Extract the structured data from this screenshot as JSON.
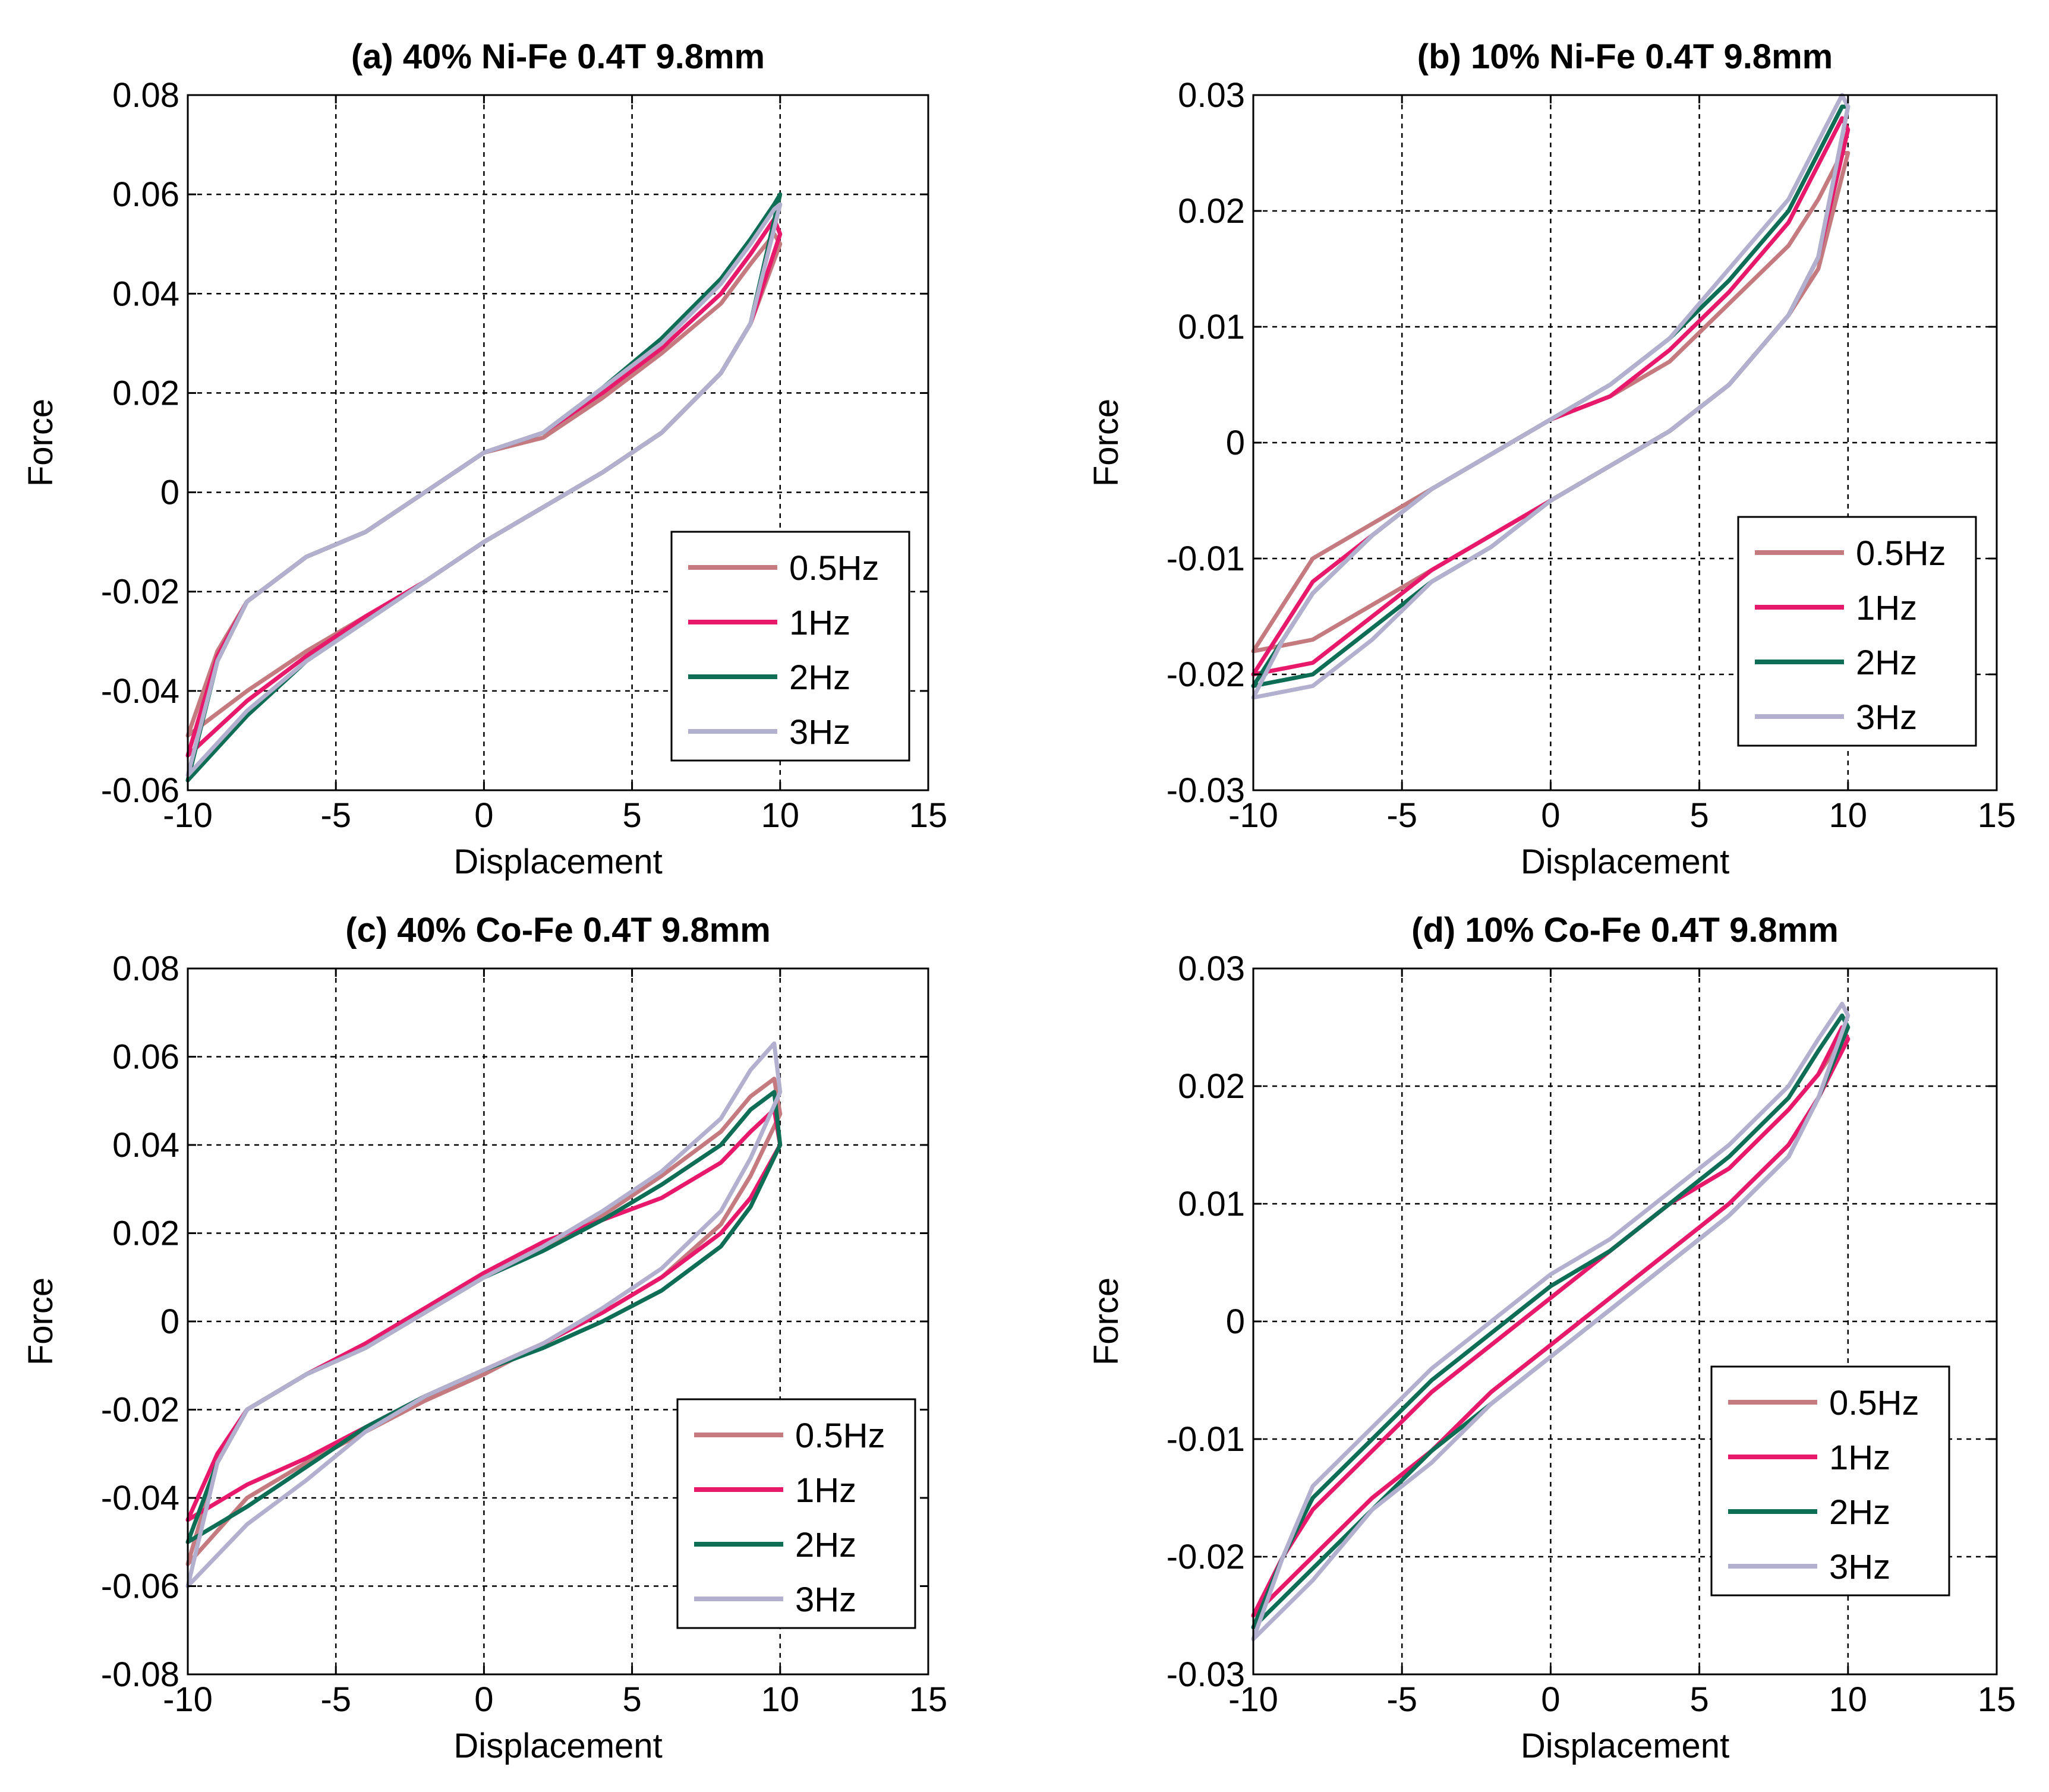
{
  "colors": {
    "0.5Hz": "#c47a7e",
    "1Hz": "#e8196b",
    "2Hz": "#0e6e55",
    "3Hz": "#b2b0ce",
    "grid": "#000000",
    "background": "#ffffff"
  },
  "chart_data": [
    {
      "id": "a",
      "type": "line",
      "title": "(a) 40% Ni-Fe  0.4T 9.8mm",
      "xlabel": "Displacement",
      "ylabel": "Force",
      "xlim": [
        -10,
        15
      ],
      "ylim": [
        -0.06,
        0.08
      ],
      "xticks": [
        -10,
        -5,
        0,
        5,
        10,
        15
      ],
      "yticks": [
        -0.06,
        -0.04,
        -0.02,
        0,
        0.02,
        0.04,
        0.06,
        0.08
      ],
      "xtick_labels": [
        "-10",
        "-5",
        "0",
        "5",
        "10",
        "15"
      ],
      "ytick_labels": [
        "-0.06",
        "-0.04",
        "-0.02",
        "0",
        "0.02",
        "0.04",
        "0.06",
        "0.08"
      ],
      "grid": true,
      "legend": {
        "position": "lower-right",
        "entries": [
          "0.5Hz",
          "1Hz",
          "2Hz",
          "3Hz"
        ]
      },
      "series": [
        {
          "name": "0.5Hz",
          "x": [
            -10,
            -8,
            -6,
            -4,
            -2,
            0,
            2,
            4,
            6,
            8,
            9,
            10,
            9.8,
            9,
            8,
            6,
            4,
            2,
            0,
            -2,
            -4,
            -6,
            -8,
            -9,
            -10
          ],
          "y": [
            -0.049,
            -0.04,
            -0.032,
            -0.025,
            -0.018,
            -0.01,
            -0.003,
            0.004,
            0.012,
            0.024,
            0.034,
            0.05,
            0.052,
            0.046,
            0.038,
            0.028,
            0.019,
            0.011,
            0.008,
            0.0,
            -0.008,
            -0.013,
            -0.022,
            -0.032,
            -0.049
          ]
        },
        {
          "name": "1Hz",
          "x": [
            -10,
            -8,
            -6,
            -4,
            -2,
            0,
            2,
            4,
            6,
            8,
            9,
            10,
            9.8,
            9,
            8,
            6,
            4,
            2,
            0,
            -2,
            -4,
            -6,
            -8,
            -9,
            -10
          ],
          "y": [
            -0.053,
            -0.042,
            -0.033,
            -0.025,
            -0.018,
            -0.01,
            -0.003,
            0.004,
            0.012,
            0.024,
            0.034,
            0.052,
            0.055,
            0.048,
            0.04,
            0.029,
            0.02,
            0.012,
            0.008,
            0.0,
            -0.008,
            -0.013,
            -0.022,
            -0.033,
            -0.053
          ]
        },
        {
          "name": "2Hz",
          "x": [
            -10,
            -8,
            -6,
            -4,
            -2,
            0,
            2,
            4,
            6,
            8,
            9,
            10,
            9.8,
            9,
            8,
            6,
            4,
            2,
            0,
            -2,
            -4,
            -6,
            -8,
            -9,
            -10
          ],
          "y": [
            -0.058,
            -0.045,
            -0.034,
            -0.026,
            -0.018,
            -0.01,
            -0.003,
            0.004,
            0.012,
            0.024,
            0.034,
            0.06,
            0.058,
            0.051,
            0.043,
            0.031,
            0.021,
            0.012,
            0.008,
            0.0,
            -0.008,
            -0.013,
            -0.022,
            -0.034,
            -0.058
          ]
        },
        {
          "name": "3Hz",
          "x": [
            -10,
            -8,
            -6,
            -4,
            -2,
            0,
            2,
            4,
            6,
            8,
            9,
            10,
            9.8,
            9,
            8,
            6,
            4,
            2,
            0,
            -2,
            -4,
            -6,
            -8,
            -9,
            -10
          ],
          "y": [
            -0.057,
            -0.044,
            -0.034,
            -0.026,
            -0.018,
            -0.01,
            -0.003,
            0.004,
            0.012,
            0.024,
            0.034,
            0.058,
            0.057,
            0.05,
            0.042,
            0.03,
            0.021,
            0.012,
            0.008,
            0.0,
            -0.008,
            -0.013,
            -0.022,
            -0.034,
            -0.057
          ]
        }
      ]
    },
    {
      "id": "b",
      "type": "line",
      "title": "(b) 10% Ni-Fe  0.4T 9.8mm",
      "xlabel": "Displacement",
      "ylabel": "Force",
      "xlim": [
        -10,
        15
      ],
      "ylim": [
        -0.03,
        0.03
      ],
      "xticks": [
        -10,
        -5,
        0,
        5,
        10,
        15
      ],
      "yticks": [
        -0.03,
        -0.02,
        -0.01,
        0,
        0.01,
        0.02,
        0.03
      ],
      "xtick_labels": [
        "-10",
        "-5",
        "0",
        "5",
        "10",
        "15"
      ],
      "ytick_labels": [
        "-0.03",
        "-0.02",
        "-0.01",
        "0",
        "0.01",
        "0.02",
        "0.03"
      ],
      "grid": true,
      "legend": {
        "position": "lower-right",
        "entries": [
          "0.5Hz",
          "1Hz",
          "2Hz",
          "3Hz"
        ]
      },
      "series": [
        {
          "name": "0.5Hz",
          "x": [
            -10,
            -8,
            -6,
            -4,
            -2,
            0,
            2,
            4,
            6,
            8,
            9,
            10,
            9.8,
            9,
            8,
            6,
            4,
            2,
            0,
            -2,
            -4,
            -6,
            -8,
            -9,
            -10
          ],
          "y": [
            -0.018,
            -0.017,
            -0.014,
            -0.011,
            -0.008,
            -0.005,
            -0.002,
            0.001,
            0.005,
            0.011,
            0.015,
            0.025,
            0.025,
            0.021,
            0.017,
            0.012,
            0.007,
            0.004,
            0.002,
            -0.001,
            -0.004,
            -0.007,
            -0.01,
            -0.014,
            -0.018
          ]
        },
        {
          "name": "1Hz",
          "x": [
            -10,
            -8,
            -6,
            -4,
            -2,
            0,
            2,
            4,
            6,
            8,
            9,
            10,
            9.8,
            9,
            8,
            6,
            4,
            2,
            0,
            -2,
            -4,
            -6,
            -8,
            -9,
            -10
          ],
          "y": [
            -0.02,
            -0.019,
            -0.015,
            -0.011,
            -0.008,
            -0.005,
            -0.002,
            0.001,
            0.005,
            0.011,
            0.016,
            0.027,
            0.028,
            0.024,
            0.019,
            0.013,
            0.008,
            0.004,
            0.002,
            -0.001,
            -0.004,
            -0.008,
            -0.012,
            -0.016,
            -0.02
          ]
        },
        {
          "name": "2Hz",
          "x": [
            -10,
            -8,
            -6,
            -4,
            -2,
            0,
            2,
            4,
            6,
            8,
            9,
            10,
            9.8,
            9,
            8,
            6,
            4,
            2,
            0,
            -2,
            -4,
            -6,
            -8,
            -9,
            -10
          ],
          "y": [
            -0.021,
            -0.02,
            -0.016,
            -0.012,
            -0.009,
            -0.005,
            -0.002,
            0.001,
            0.005,
            0.011,
            0.016,
            0.029,
            0.029,
            0.025,
            0.02,
            0.014,
            0.009,
            0.005,
            0.002,
            -0.001,
            -0.004,
            -0.008,
            -0.013,
            -0.017,
            -0.021
          ]
        },
        {
          "name": "3Hz",
          "x": [
            -10,
            -8,
            -6,
            -4,
            -2,
            0,
            2,
            4,
            6,
            8,
            9,
            10,
            9.8,
            9,
            8,
            6,
            4,
            2,
            0,
            -2,
            -4,
            -6,
            -8,
            -9,
            -10
          ],
          "y": [
            -0.022,
            -0.021,
            -0.017,
            -0.012,
            -0.009,
            -0.005,
            -0.002,
            0.001,
            0.005,
            0.011,
            0.016,
            0.029,
            0.03,
            0.026,
            0.021,
            0.015,
            0.009,
            0.005,
            0.002,
            -0.001,
            -0.004,
            -0.008,
            -0.013,
            -0.017,
            -0.022
          ]
        }
      ]
    },
    {
      "id": "c",
      "type": "line",
      "title": "(c) 40% Co-Fe  0.4T 9.8mm",
      "xlabel": "Displacement",
      "ylabel": "Force",
      "xlim": [
        -10,
        15
      ],
      "ylim": [
        -0.08,
        0.08
      ],
      "xticks": [
        -10,
        -5,
        0,
        5,
        10,
        15
      ],
      "yticks": [
        -0.08,
        -0.06,
        -0.04,
        -0.02,
        0,
        0.02,
        0.04,
        0.06,
        0.08
      ],
      "xtick_labels": [
        "-10",
        "-5",
        "0",
        "5",
        "10",
        "15"
      ],
      "ytick_labels": [
        "-0.08",
        "-0.06",
        "-0.04",
        "-0.02",
        "0",
        "0.02",
        "0.04",
        "0.06",
        "0.08"
      ],
      "grid": true,
      "legend": {
        "position": "lower-right",
        "entries": [
          "0.5Hz",
          "1Hz",
          "2Hz",
          "3Hz"
        ]
      },
      "series": [
        {
          "name": "0.5Hz",
          "x": [
            -10,
            -8,
            -6,
            -4,
            -2,
            0,
            2,
            4,
            6,
            8,
            9,
            10,
            9.8,
            9,
            8,
            6,
            4,
            2,
            0,
            -2,
            -4,
            -6,
            -8,
            -9,
            -10
          ],
          "y": [
            -0.055,
            -0.04,
            -0.032,
            -0.025,
            -0.018,
            -0.012,
            -0.005,
            0.002,
            0.01,
            0.022,
            0.033,
            0.047,
            0.055,
            0.051,
            0.043,
            0.033,
            0.024,
            0.017,
            0.01,
            0.002,
            -0.006,
            -0.012,
            -0.02,
            -0.032,
            -0.055
          ]
        },
        {
          "name": "1Hz",
          "x": [
            -10,
            -8,
            -6,
            -4,
            -2,
            0,
            2,
            4,
            6,
            8,
            9,
            10,
            9.8,
            9,
            8,
            6,
            4,
            2,
            0,
            -2,
            -4,
            -6,
            -8,
            -9,
            -10
          ],
          "y": [
            -0.045,
            -0.037,
            -0.031,
            -0.024,
            -0.017,
            -0.011,
            -0.005,
            0.002,
            0.01,
            0.02,
            0.028,
            0.04,
            0.048,
            0.043,
            0.036,
            0.028,
            0.023,
            0.018,
            0.011,
            0.003,
            -0.005,
            -0.012,
            -0.02,
            -0.03,
            -0.045
          ]
        },
        {
          "name": "2Hz",
          "x": [
            -10,
            -8,
            -6,
            -4,
            -2,
            0,
            2,
            4,
            6,
            8,
            9,
            10,
            9.8,
            9,
            8,
            6,
            4,
            2,
            0,
            -2,
            -4,
            -6,
            -8,
            -9,
            -10
          ],
          "y": [
            -0.05,
            -0.042,
            -0.033,
            -0.024,
            -0.017,
            -0.011,
            -0.006,
            0.0,
            0.007,
            0.017,
            0.026,
            0.04,
            0.052,
            0.048,
            0.04,
            0.031,
            0.023,
            0.016,
            0.01,
            0.002,
            -0.006,
            -0.012,
            -0.02,
            -0.032,
            -0.05
          ]
        },
        {
          "name": "3Hz",
          "x": [
            -10,
            -8,
            -6,
            -4,
            -2,
            0,
            2,
            4,
            6,
            8,
            9,
            10,
            9.8,
            9,
            8,
            6,
            4,
            2,
            0,
            -2,
            -4,
            -6,
            -8,
            -9,
            -10
          ],
          "y": [
            -0.06,
            -0.046,
            -0.036,
            -0.025,
            -0.017,
            -0.011,
            -0.005,
            0.003,
            0.012,
            0.025,
            0.037,
            0.052,
            0.063,
            0.057,
            0.046,
            0.034,
            0.025,
            0.017,
            0.01,
            0.002,
            -0.006,
            -0.012,
            -0.02,
            -0.032,
            -0.06
          ]
        }
      ]
    },
    {
      "id": "d",
      "type": "line",
      "title": "(d) 10% Co-Fe  0.4T 9.8mm",
      "xlabel": "Displacement",
      "ylabel": "Force",
      "xlim": [
        -10,
        15
      ],
      "ylim": [
        -0.03,
        0.03
      ],
      "xticks": [
        -10,
        -5,
        0,
        5,
        10,
        15
      ],
      "yticks": [
        -0.03,
        -0.02,
        -0.01,
        0,
        0.01,
        0.02,
        0.03
      ],
      "xtick_labels": [
        "-10",
        "-5",
        "0",
        "5",
        "10",
        "15"
      ],
      "ytick_labels": [
        "-0.03",
        "-0.02",
        "-0.01",
        "0",
        "0.01",
        "0.02",
        "0.03"
      ],
      "grid": true,
      "legend": {
        "position": "lower-right",
        "entries": [
          "0.5Hz",
          "1Hz",
          "2Hz",
          "3Hz"
        ]
      },
      "series": [
        {
          "name": "0.5Hz",
          "x": [
            -10,
            -8,
            -6,
            -4,
            -2,
            0,
            2,
            4,
            6,
            8,
            9,
            10,
            9.8,
            9,
            8,
            6,
            4,
            2,
            0,
            -2,
            -4,
            -6,
            -8,
            -9,
            -10
          ],
          "y": [
            -0.025,
            -0.02,
            -0.015,
            -0.011,
            -0.006,
            -0.002,
            0.002,
            0.006,
            0.01,
            0.015,
            0.019,
            0.024,
            0.024,
            0.021,
            0.018,
            0.013,
            0.01,
            0.006,
            0.002,
            -0.002,
            -0.006,
            -0.011,
            -0.016,
            -0.02,
            -0.025
          ]
        },
        {
          "name": "1Hz",
          "x": [
            -10,
            -8,
            -6,
            -4,
            -2,
            0,
            2,
            4,
            6,
            8,
            9,
            10,
            9.8,
            9,
            8,
            6,
            4,
            2,
            0,
            -2,
            -4,
            -6,
            -8,
            -9,
            -10
          ],
          "y": [
            -0.025,
            -0.02,
            -0.015,
            -0.011,
            -0.006,
            -0.002,
            0.002,
            0.006,
            0.01,
            0.015,
            0.019,
            0.024,
            0.025,
            0.021,
            0.018,
            0.013,
            0.01,
            0.006,
            0.002,
            -0.002,
            -0.006,
            -0.011,
            -0.016,
            -0.02,
            -0.025
          ]
        },
        {
          "name": "2Hz",
          "x": [
            -10,
            -8,
            -6,
            -4,
            -2,
            0,
            2,
            4,
            6,
            8,
            9,
            10,
            9.8,
            9,
            8,
            6,
            4,
            2,
            0,
            -2,
            -4,
            -6,
            -8,
            -9,
            -10
          ],
          "y": [
            -0.026,
            -0.021,
            -0.016,
            -0.011,
            -0.007,
            -0.003,
            0.001,
            0.005,
            0.009,
            0.014,
            0.019,
            0.025,
            0.026,
            0.023,
            0.019,
            0.014,
            0.01,
            0.006,
            0.003,
            -0.001,
            -0.005,
            -0.01,
            -0.015,
            -0.02,
            -0.026
          ]
        },
        {
          "name": "3Hz",
          "x": [
            -10,
            -8,
            -6,
            -4,
            -2,
            0,
            2,
            4,
            6,
            8,
            9,
            10,
            9.8,
            9,
            8,
            6,
            4,
            2,
            0,
            -2,
            -4,
            -6,
            -8,
            -9,
            -10
          ],
          "y": [
            -0.027,
            -0.022,
            -0.016,
            -0.012,
            -0.007,
            -0.003,
            0.001,
            0.005,
            0.009,
            0.014,
            0.019,
            0.026,
            0.027,
            0.024,
            0.02,
            0.015,
            0.011,
            0.007,
            0.004,
            0.0,
            -0.004,
            -0.009,
            -0.014,
            -0.02,
            -0.027
          ]
        }
      ]
    }
  ]
}
